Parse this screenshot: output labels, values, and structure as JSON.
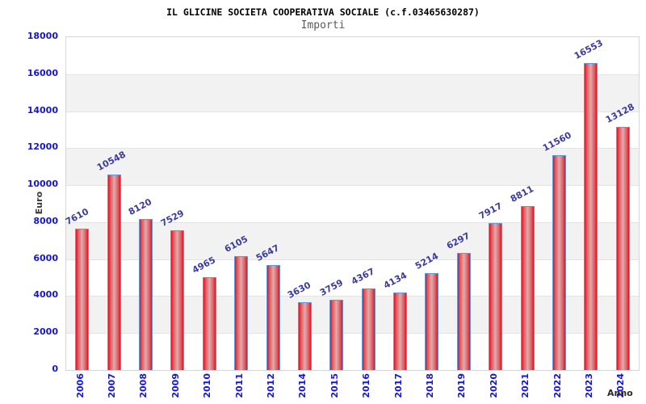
{
  "header": {
    "title": "IL GLICINE SOCIETA COOPERATIVA SOCIALE (c.f.03465630287)",
    "subtitle": "Importi"
  },
  "chart_data": {
    "type": "bar",
    "title": "IL GLICINE SOCIETA COOPERATIVA SOCIALE (c.f.03465630287)",
    "subtitle": "Importi",
    "xlabel": "Anno",
    "ylabel": "Euro",
    "categories": [
      "2006",
      "2007",
      "2008",
      "2009",
      "2010",
      "2011",
      "2012",
      "2014",
      "2015",
      "2016",
      "2017",
      "2018",
      "2019",
      "2020",
      "2021",
      "2022",
      "2023",
      "2024"
    ],
    "values": [
      7610,
      10548,
      8120,
      7529,
      4965,
      6105,
      5647,
      3630,
      3759,
      4367,
      4134,
      5214,
      6297,
      7917,
      8811,
      11560,
      16553,
      13128
    ],
    "ylim": [
      0,
      18000
    ],
    "ytick_step": 2000,
    "grid": true,
    "legend": "none",
    "colors": {
      "bar_edge": "#ea0f21",
      "bar_mid": "#e2abab",
      "bar_mid2": "#dd5f66",
      "bar_border": "#5e9ce0",
      "band_base": "#ffffff",
      "band_alt": "#f2f2f2",
      "grid_line": "#e3e3e3",
      "tick_label": "#1414dc",
      "value_label": "#3a3aa0",
      "title_color": "#000000",
      "subtitle_color": "#5a5a5a"
    }
  }
}
